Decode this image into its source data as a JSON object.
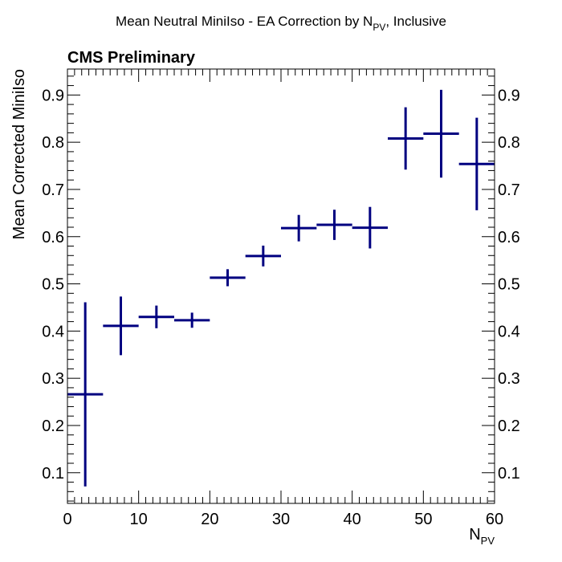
{
  "chart_data": {
    "type": "scatter",
    "title": "Mean Neutral MiniIso - EA Correction by N",
    "title_subscript": "PV",
    "title_suffix": ", Inclusive",
    "annotation": "CMS Preliminary",
    "xlabel": "N",
    "xlabel_subscript": "PV",
    "ylabel": "Mean Corrected MiniIso",
    "xlim": [
      0,
      60
    ],
    "ylim": [
      0.035,
      0.955
    ],
    "x_ticks": [
      0,
      10,
      20,
      30,
      40,
      50,
      60
    ],
    "y_ticks": [
      0.1,
      0.2,
      0.3,
      0.4,
      0.5,
      0.6,
      0.7,
      0.8,
      0.9
    ],
    "grid": false,
    "color": "#000080",
    "series": [
      {
        "name": "Mean Corrected MiniIso",
        "points": [
          {
            "x": 2.5,
            "xerr": 2.5,
            "y": 0.266,
            "yerr": 0.195
          },
          {
            "x": 7.5,
            "xerr": 2.5,
            "y": 0.411,
            "yerr": 0.062
          },
          {
            "x": 12.5,
            "xerr": 2.5,
            "y": 0.43,
            "yerr": 0.024
          },
          {
            "x": 17.5,
            "xerr": 2.5,
            "y": 0.423,
            "yerr": 0.016
          },
          {
            "x": 22.5,
            "xerr": 2.5,
            "y": 0.513,
            "yerr": 0.018
          },
          {
            "x": 27.5,
            "xerr": 2.5,
            "y": 0.559,
            "yerr": 0.022
          },
          {
            "x": 32.5,
            "xerr": 2.5,
            "y": 0.618,
            "yerr": 0.028
          },
          {
            "x": 37.5,
            "xerr": 2.5,
            "y": 0.625,
            "yerr": 0.032
          },
          {
            "x": 42.5,
            "xerr": 2.5,
            "y": 0.619,
            "yerr": 0.044
          },
          {
            "x": 47.5,
            "xerr": 2.5,
            "y": 0.808,
            "yerr": 0.066
          },
          {
            "x": 52.5,
            "xerr": 2.5,
            "y": 0.818,
            "yerr": 0.093
          },
          {
            "x": 57.5,
            "xerr": 2.5,
            "y": 0.754,
            "yerr": 0.098
          }
        ]
      }
    ]
  }
}
